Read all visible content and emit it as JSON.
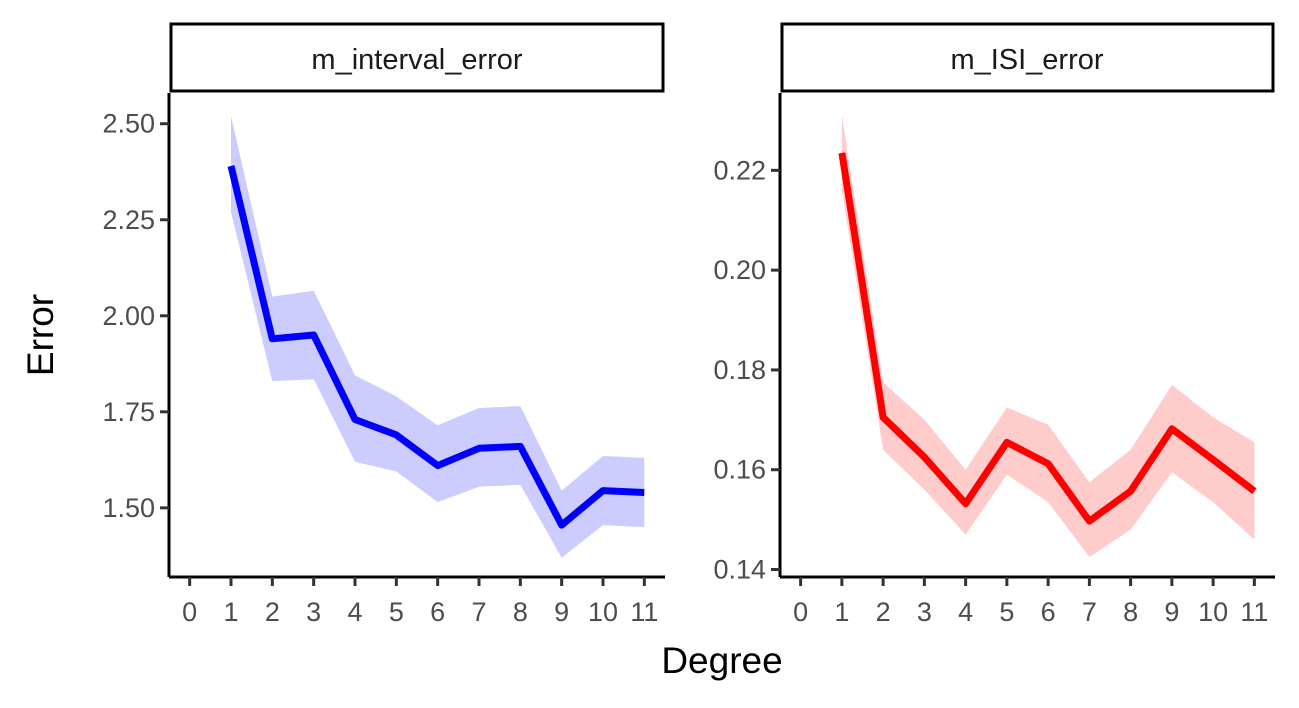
{
  "chart_data": {
    "type": "line",
    "xlabel": "Degree",
    "ylabel": "Error",
    "x_ticks": [
      0,
      1,
      2,
      3,
      4,
      5,
      6,
      7,
      8,
      9,
      10,
      11
    ],
    "x_range": [
      -0.5,
      11.5
    ],
    "panels": [
      {
        "strip_label": "m_interval_error",
        "line_color": "#0000ff",
        "ribbon_color": "#ccccff",
        "y_range": [
          1.32,
          2.58
        ],
        "y_ticks": [
          1.5,
          1.75,
          2.0,
          2.25,
          2.5
        ],
        "y_tick_labels": [
          "1.50",
          "1.75",
          "2.00",
          "2.25",
          "2.50"
        ],
        "x": [
          1,
          2,
          3,
          4,
          5,
          6,
          7,
          8,
          9,
          10,
          11
        ],
        "y": [
          2.39,
          1.94,
          1.95,
          1.73,
          1.69,
          1.61,
          1.655,
          1.66,
          1.455,
          1.545,
          1.54
        ],
        "lower": [
          2.27,
          1.83,
          1.835,
          1.62,
          1.595,
          1.515,
          1.555,
          1.56,
          1.37,
          1.455,
          1.45
        ],
        "upper": [
          2.52,
          2.05,
          2.065,
          1.845,
          1.79,
          1.715,
          1.76,
          1.765,
          1.545,
          1.635,
          1.63
        ]
      },
      {
        "strip_label": "m_ISI_error",
        "line_color": "#ff0000",
        "ribbon_color": "#ffcccc",
        "y_range": [
          0.1385,
          0.2355
        ],
        "y_ticks": [
          0.14,
          0.16,
          0.18,
          0.2,
          0.22
        ],
        "y_tick_labels": [
          "0.14",
          "0.16",
          "0.18",
          "0.20",
          "0.22"
        ],
        "x": [
          1,
          2,
          3,
          4,
          5,
          6,
          7,
          8,
          9,
          10,
          11
        ],
        "y": [
          0.2235,
          0.1705,
          0.1625,
          0.1532,
          0.1655,
          0.1612,
          0.1497,
          0.1557,
          0.1682,
          0.162,
          0.1557
        ],
        "lower": [
          0.216,
          0.164,
          0.156,
          0.147,
          0.159,
          0.1535,
          0.1425,
          0.148,
          0.1595,
          0.1535,
          0.146
        ],
        "upper": [
          0.231,
          0.1775,
          0.17,
          0.16,
          0.1725,
          0.169,
          0.1575,
          0.164,
          0.177,
          0.1705,
          0.1655
        ]
      }
    ]
  }
}
